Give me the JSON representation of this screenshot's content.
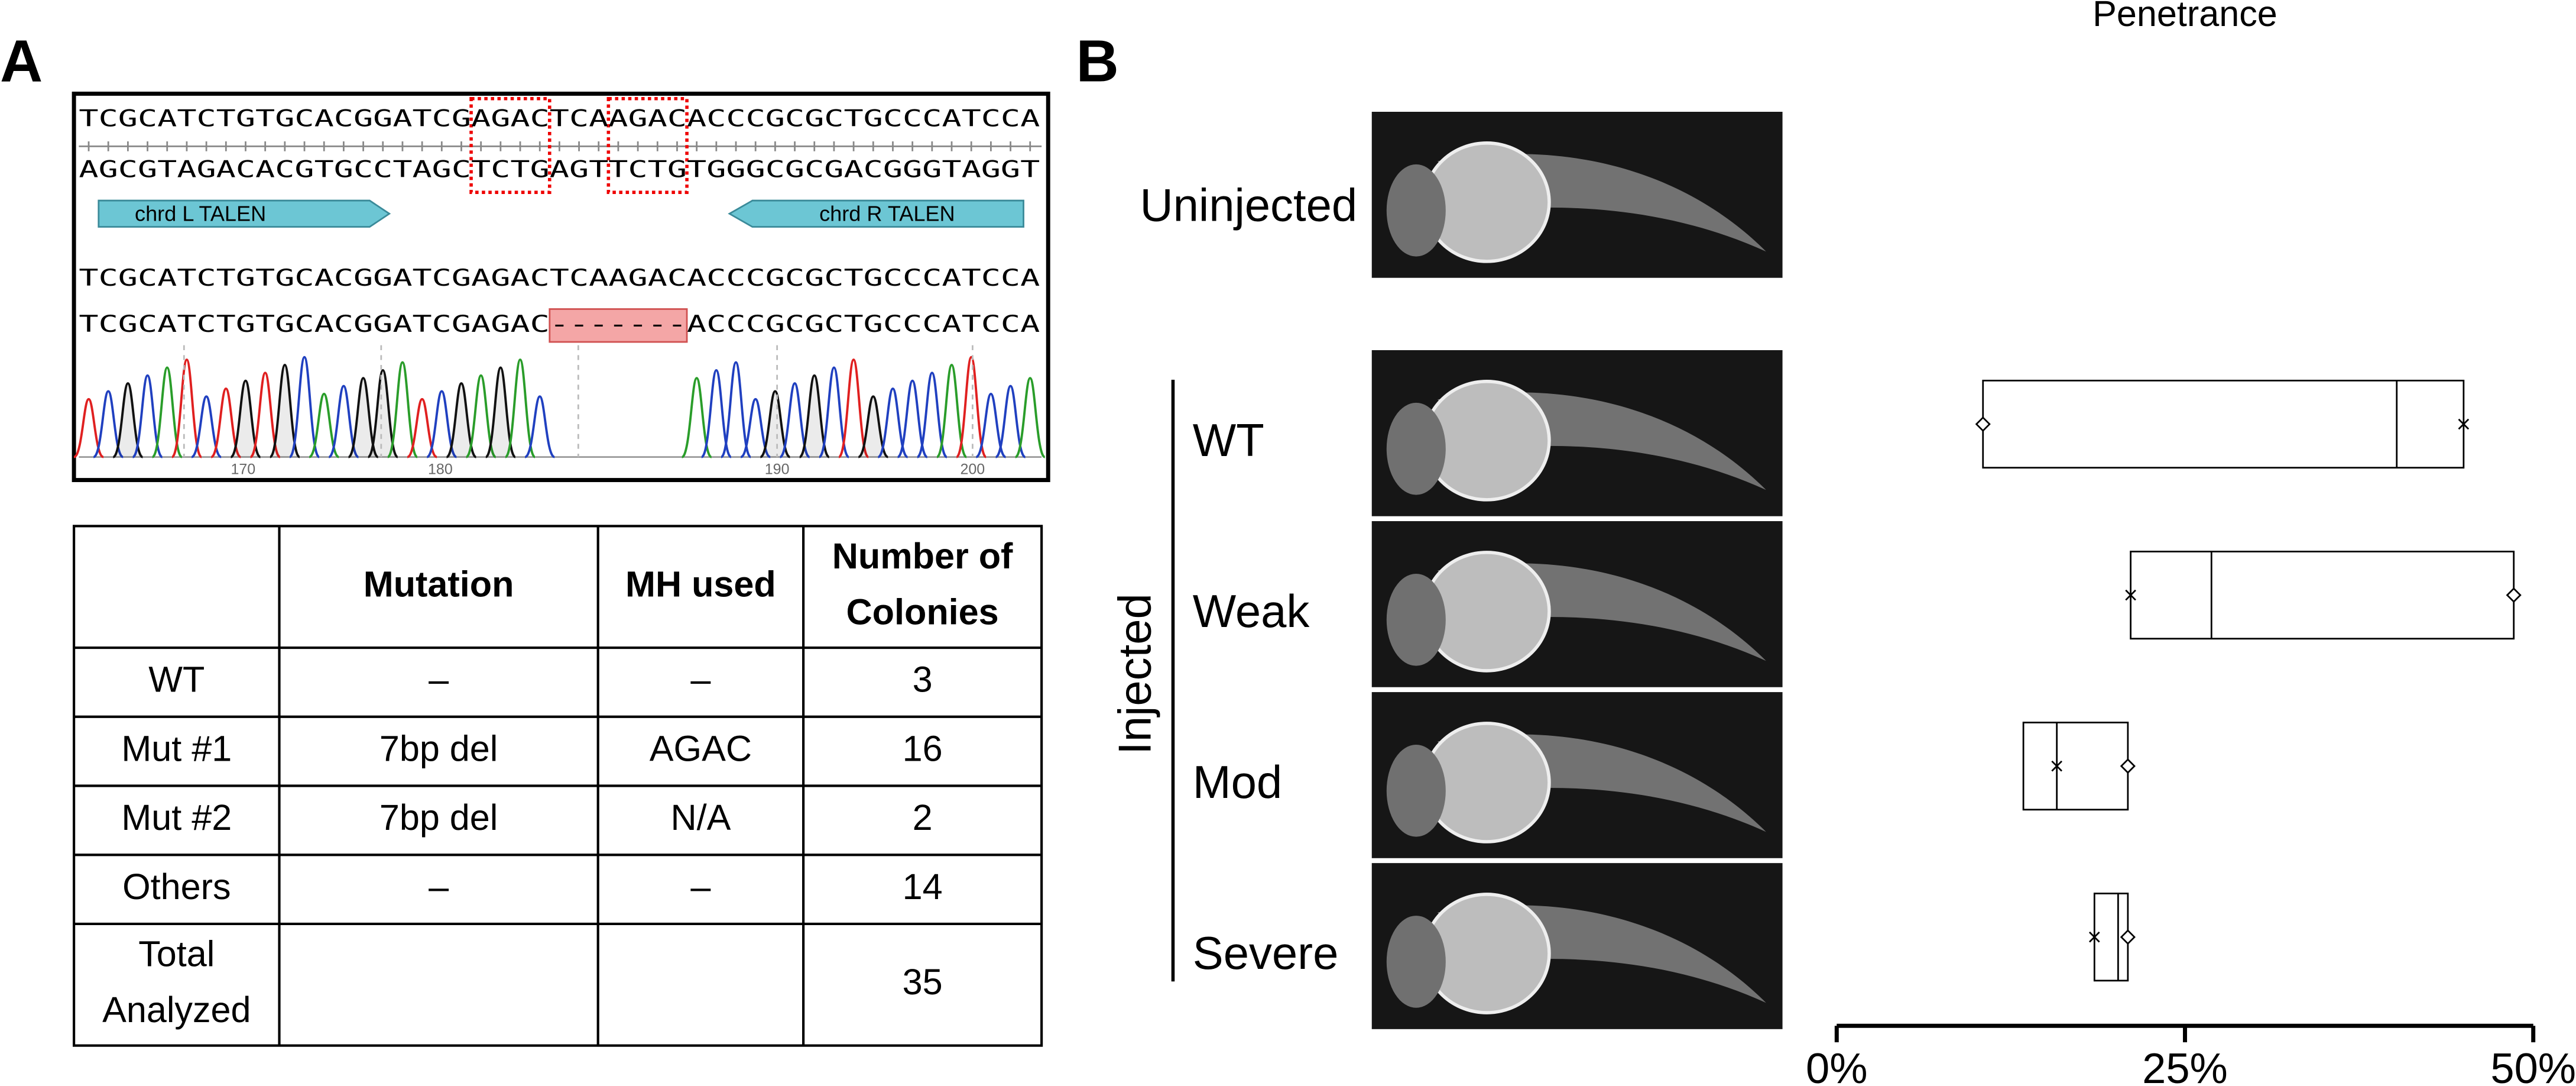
{
  "panel_a": {
    "label": "A",
    "sequence_top": "TCGCATCTGTGCACGGATCGAGACTCAAGACACCCGCGCTGCCCATCCA",
    "sequence_bottom": "AGCGTAGACACGTGCCTAGCTCTGAGTTCTGTGGGCGCGACGGGTAGGT",
    "talens": [
      "chrd L TALEN",
      "chrd R TALEN"
    ],
    "read_wt": "TCGCATCTGTGCACGGATCGAGACTCAAGACACCCGCGCTGCCCATCCA",
    "read_mut": "TCGCATCTGTGCACGGATCGAGAC-------ACCCGCGCTGCCCATCCA",
    "ruler": [
      170,
      180,
      190,
      200
    ]
  },
  "table": {
    "header": [
      null,
      "Mutation",
      "MH used",
      "Number of Colonies"
    ],
    "rows": [
      [
        "WT",
        "–",
        "–",
        3
      ],
      [
        "Mut #1",
        "7bp del",
        "AGAC",
        16
      ],
      [
        "Mut #2",
        "7bp del",
        "N/A",
        2
      ],
      [
        "Others",
        "–",
        "–",
        14
      ],
      [
        "Total Analyzed",
        null,
        null,
        35
      ]
    ]
  },
  "panel_b": {
    "label": "B",
    "uninjected": "Uninjected",
    "injected": "Injected"
  },
  "chart_data": {
    "type": "box",
    "title": "Penetrance",
    "categories": [
      "WT",
      "Weak",
      "Mod",
      "Severe"
    ],
    "low": [
      10.5,
      21.1,
      13.4,
      18.5
    ],
    "median": [
      40.2,
      26.9,
      15.8,
      20.2
    ],
    "high": [
      45,
      48.6,
      20.9,
      20.9
    ],
    "x_marker": [
      45,
      21.1,
      15.8,
      18.5
    ],
    "diamond_marker": [
      10.5,
      48.6,
      20.9,
      20.9
    ],
    "xlim": [
      0,
      50
    ],
    "xticks": [
      {
        "value": 0,
        "label": "0%"
      },
      {
        "value": 25,
        "label": "25%"
      },
      {
        "value": 50,
        "label": "50%"
      }
    ]
  }
}
